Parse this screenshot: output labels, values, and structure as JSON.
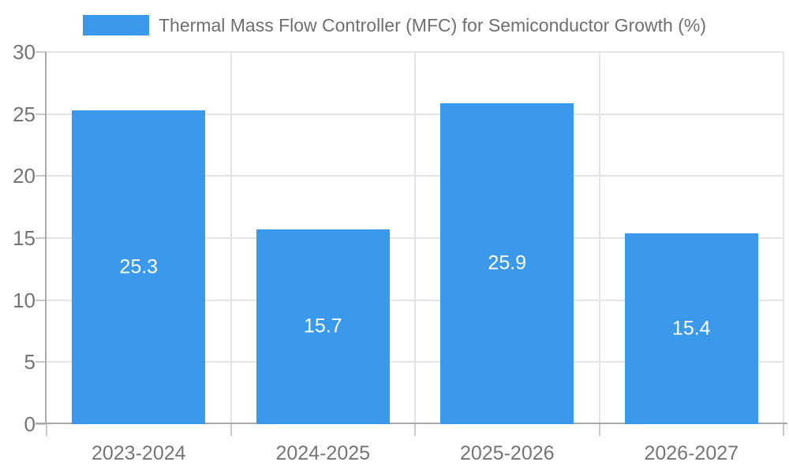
{
  "legend": {
    "label": "Thermal Mass Flow Controller (MFC) for Semiconductor Growth (%)"
  },
  "chart_data": {
    "type": "bar",
    "title": "Thermal Mass Flow Controller (MFC) for Semiconductor Growth (%)",
    "categories": [
      "2023-2024",
      "2024-2025",
      "2025-2026",
      "2026-2027"
    ],
    "series": [
      {
        "name": "Thermal Mass Flow Controller (MFC) for Semiconductor Growth (%)",
        "values": [
          25.3,
          15.7,
          25.9,
          15.4
        ]
      }
    ],
    "value_labels": [
      "25.3",
      "15.7",
      "25.9",
      "15.4"
    ],
    "xlabel": "",
    "ylabel": "",
    "ylim": [
      0,
      30
    ],
    "y_ticks": [
      0,
      5,
      10,
      15,
      20,
      25,
      30
    ],
    "grid": true,
    "legend_position": "top",
    "colors": {
      "bar": "#3b99ec",
      "value_label": "#ffffff",
      "axis_label": "#757575",
      "legend_text": "#6f6f6f",
      "gridline": "#e4e4e4",
      "axis_line": "#a9a9a9",
      "tick": "#c9c9c9",
      "background": "#ffffff"
    }
  }
}
